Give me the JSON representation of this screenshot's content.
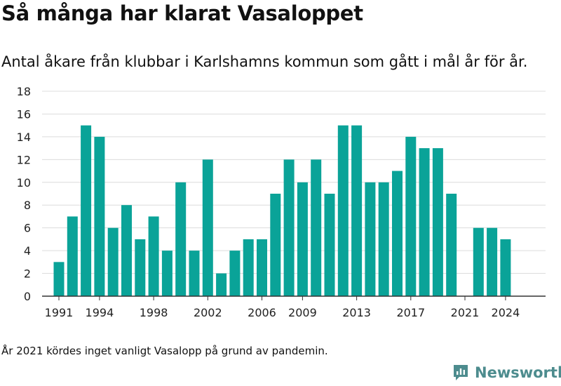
{
  "header": {
    "title": "Så många har klarat Vasaloppet",
    "subtitle": "Antal åkare från klubbar i Karlshamns kommun som gått i mål år för år."
  },
  "footer": {
    "note": "År 2021 kördes inget vanligt Vasalopp på grund av pandemin.",
    "brand": "Newsworthy",
    "brand_icon": "newsworthy-logo-icon"
  },
  "colors": {
    "bar": "#0aa398",
    "grid": "#dcdcdc",
    "axis": "#333333",
    "brand": "#4d8c8e"
  },
  "chart_data": {
    "type": "bar",
    "title": "",
    "xlabel": "",
    "ylabel": "",
    "categories": [
      1991,
      1992,
      1993,
      1994,
      1995,
      1996,
      1997,
      1998,
      1999,
      2000,
      2001,
      2002,
      2003,
      2004,
      2005,
      2006,
      2007,
      2008,
      2009,
      2010,
      2011,
      2012,
      2013,
      2014,
      2015,
      2016,
      2017,
      2018,
      2019,
      2020,
      2021,
      2022,
      2023,
      2024
    ],
    "values": [
      3,
      7,
      15,
      14,
      6,
      8,
      5,
      7,
      4,
      10,
      4,
      12,
      2,
      4,
      5,
      5,
      9,
      12,
      10,
      12,
      9,
      15,
      15,
      10,
      10,
      11,
      14,
      13,
      13,
      9,
      0,
      6,
      6,
      5
    ],
    "x_tick_labels": [
      "1991",
      "1994",
      "1998",
      "2002",
      "2006",
      "2009",
      "2013",
      "2017",
      "2021",
      "2024"
    ],
    "y_ticks": [
      "0",
      "2",
      "4",
      "6",
      "8",
      "10",
      "12",
      "14",
      "16",
      "18"
    ],
    "ylim": [
      0,
      18
    ],
    "grid": true,
    "legend": "none"
  }
}
